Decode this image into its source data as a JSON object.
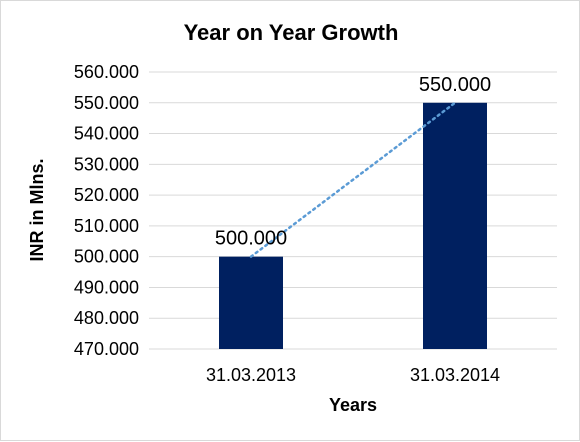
{
  "chart_data": {
    "type": "bar",
    "title": "Year on Year Growth",
    "xlabel": "Years",
    "ylabel": "INR in Mlns.",
    "categories": [
      "31.03.2013",
      "31.03.2014"
    ],
    "values": [
      500.0,
      550.0
    ],
    "data_labels": [
      "500.000",
      "550.000"
    ],
    "ylim": [
      470,
      560
    ],
    "yticks": [
      470,
      480,
      490,
      500,
      510,
      520,
      530,
      540,
      550,
      560
    ],
    "ytick_labels": [
      "470.000",
      "480.000",
      "490.000",
      "500.000",
      "510.000",
      "520.000",
      "530.000",
      "540.000",
      "550.000",
      "560.000"
    ],
    "grid": true,
    "legend": "none",
    "trendline": "linear-dotted",
    "bar_color": "#002060",
    "trendline_color": "#5b9bd5",
    "grid_color": "#d9d9d9"
  }
}
